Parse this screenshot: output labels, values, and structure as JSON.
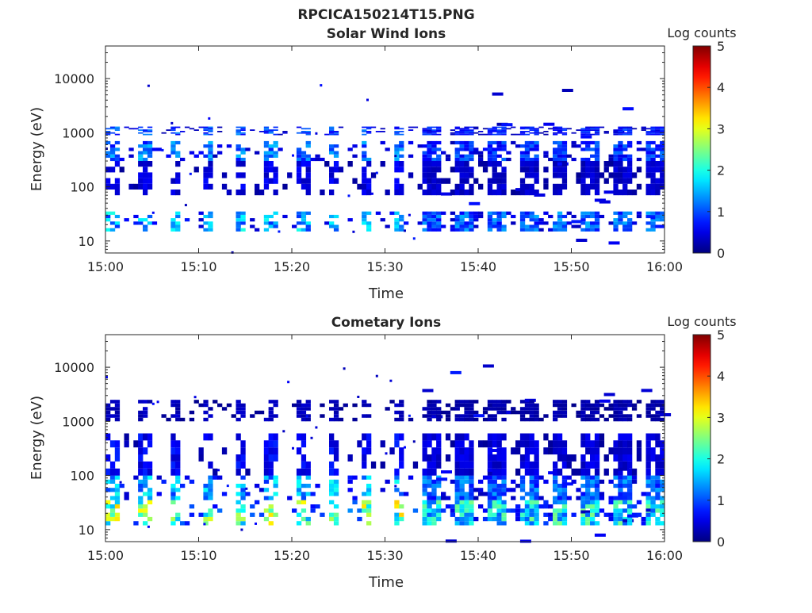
{
  "figure": {
    "title": "RPCICA150214T15.PNG",
    "background": "#ffffff"
  },
  "chart_data": [
    {
      "type": "heatmap",
      "title": "Solar Wind Ions",
      "xlabel": "Time",
      "ylabel": "Energy (eV)",
      "yscale": "log",
      "xlim": [
        "15:00",
        "16:00"
      ],
      "ylim": [
        6,
        40000
      ],
      "xticks": [
        "15:00",
        "15:10",
        "15:20",
        "15:30",
        "15:40",
        "15:50",
        "16:00"
      ],
      "yticks": [
        {
          "value": 10,
          "label": "10"
        },
        {
          "value": 100,
          "label": "100"
        },
        {
          "value": 1000,
          "label": "1000"
        },
        {
          "value": 10000,
          "label": "10000"
        }
      ],
      "colorbar": {
        "label": "Log counts",
        "min": 0,
        "max": 5,
        "ticks": [
          "0",
          "1",
          "2",
          "3",
          "4",
          "5"
        ],
        "colormap": "jet"
      },
      "note_values": "estimated",
      "bands": [
        {
          "energy": [
            15,
            35
          ],
          "level": 1.5
        },
        {
          "energy": [
            300,
            700
          ],
          "level": 1.2
        },
        {
          "energy": [
            70,
            300
          ],
          "level": 0.5
        },
        {
          "energy": [
            900,
            1300
          ],
          "level": 1.0
        }
      ],
      "sweep_period_min": 3.4,
      "transition_time": "15:34"
    },
    {
      "type": "heatmap",
      "title": "Cometary Ions",
      "xlabel": "Time",
      "ylabel": "Energy (eV)",
      "yscale": "log",
      "xlim": [
        "15:00",
        "16:00"
      ],
      "ylim": [
        6,
        40000
      ],
      "xticks": [
        "15:00",
        "15:10",
        "15:20",
        "15:30",
        "15:40",
        "15:50",
        "16:00"
      ],
      "yticks": [
        {
          "value": 10,
          "label": "10"
        },
        {
          "value": 100,
          "label": "100"
        },
        {
          "value": 1000,
          "label": "1000"
        },
        {
          "value": 10000,
          "label": "10000"
        }
      ],
      "colorbar": {
        "label": "Log counts",
        "min": 0,
        "max": 5,
        "ticks": [
          "0",
          "1",
          "2",
          "3",
          "4",
          "5"
        ],
        "colormap": "jet"
      },
      "note_values": "estimated",
      "bands": [
        {
          "energy": [
            12,
            35
          ],
          "level": 2.5
        },
        {
          "energy": [
            35,
            100
          ],
          "level": 1.5
        },
        {
          "energy": [
            100,
            600
          ],
          "level": 0.6
        },
        {
          "energy": [
            1000,
            2500
          ],
          "level": 0.3
        }
      ],
      "sweep_period_min": 3.4,
      "transition_time": "15:34"
    }
  ]
}
